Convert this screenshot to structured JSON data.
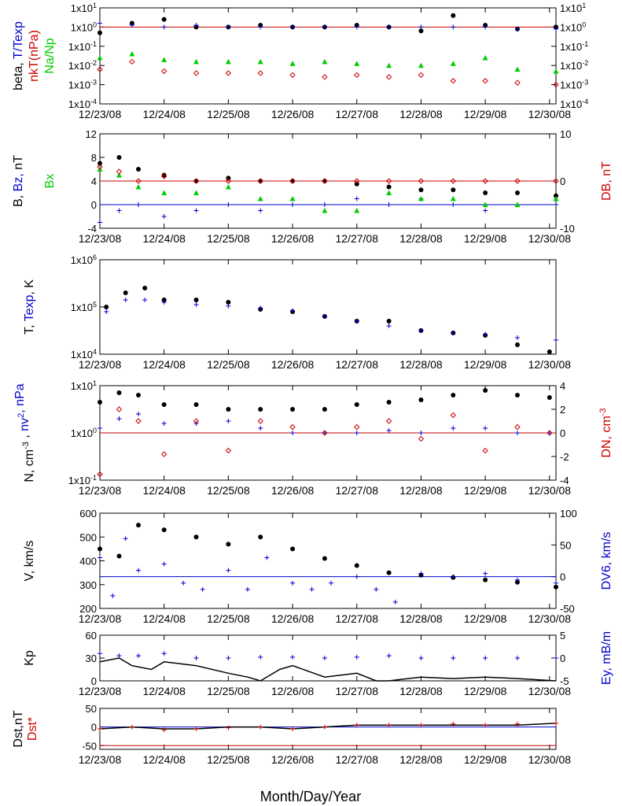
{
  "x_axis": {
    "days": [
      "12/23/08",
      "12/24/08",
      "12/25/08",
      "12/26/08",
      "12/27/08",
      "12/28/08",
      "12/29/08",
      "12/30/08"
    ],
    "title": "Month/Day/Year",
    "range": [
      0,
      7.1
    ]
  },
  "colors": {
    "black": "#000000",
    "blue": "#0000cc",
    "red": "#cc0000",
    "green": "#00cc00"
  },
  "chart_data": [
    {
      "id": "beta",
      "type": "scatter",
      "ylog": true,
      "ylim": [
        -4,
        1
      ],
      "yticks": [
        "1x10-4",
        "1x10-3",
        "1x10-2",
        "1x10-1",
        "1x100",
        "1x101"
      ],
      "y2ticks": [
        "1x10-4",
        "1x10-3",
        "1x10-2",
        "1x10-1",
        "1x100",
        "1x101"
      ],
      "ylabel_parts": [
        {
          "t": "beta, ",
          "c": "black"
        },
        {
          "t": "T/Texp",
          "c": "blue"
        }
      ],
      "ylabel2_parts": [
        {
          "t": "nkT(nPa)",
          "c": "red"
        }
      ],
      "ylabel3_parts": [
        {
          "t": "Na/Np",
          "c": "green"
        }
      ],
      "hline": {
        "value": 0,
        "color": "red"
      },
      "series": [
        {
          "marker": "circle",
          "color": "black",
          "x": [
            0,
            0.5,
            1,
            1.5,
            2,
            2.5,
            3,
            3.5,
            4,
            4.5,
            5,
            5.5,
            6,
            6.5,
            7.1
          ],
          "y": [
            -0.3,
            0.2,
            0.4,
            0,
            0,
            0.1,
            0,
            0,
            0.1,
            0,
            -0.2,
            0.6,
            0.1,
            -0.1,
            0
          ]
        },
        {
          "marker": "plus",
          "color": "blue",
          "x": [
            0,
            0.5,
            1,
            1.5,
            2,
            2.5,
            3,
            3.5,
            4,
            4.5,
            5,
            5.5,
            6,
            6.5,
            7.1
          ],
          "y": [
            0.2,
            0.1,
            0,
            0.1,
            0,
            0,
            0,
            0,
            0,
            0,
            0,
            0,
            0,
            -0.1,
            -0.1
          ]
        },
        {
          "marker": "triangle",
          "color": "green",
          "x": [
            0,
            0.5,
            1,
            1.5,
            2,
            2.5,
            3,
            3.5,
            4,
            4.5,
            5,
            5.5,
            6,
            6.5,
            7.1
          ],
          "y": [
            -1.6,
            -1.4,
            -1.7,
            -1.8,
            -1.8,
            -1.8,
            -1.9,
            -1.8,
            -1.9,
            -2,
            -2,
            -1.9,
            -1.6,
            -2.2,
            -2.3
          ]
        },
        {
          "marker": "diamond",
          "color": "red",
          "x": [
            0,
            0.5,
            1,
            1.5,
            2,
            2.5,
            3,
            3.5,
            4,
            4.5,
            5,
            5.5,
            6,
            6.5,
            7.1
          ],
          "y": [
            -2.2,
            -1.8,
            -2.3,
            -2.4,
            -2.4,
            -2.4,
            -2.5,
            -2.6,
            -2.5,
            -2.6,
            -2.5,
            -2.8,
            -2.8,
            -2.9,
            -3
          ]
        }
      ]
    },
    {
      "id": "mag",
      "type": "scatter",
      "ylog": false,
      "ylim": [
        -4,
        12
      ],
      "yticks": [
        "-4",
        "0",
        "4",
        "8",
        "12"
      ],
      "ytickvals": [
        -4,
        0,
        4,
        8,
        12
      ],
      "y2lim": [
        -10,
        10
      ],
      "y2ticks": [
        "-10",
        "0",
        "10"
      ],
      "y2tickvals": [
        -10,
        0,
        10
      ],
      "ylabel_parts": [
        {
          "t": "B, ",
          "c": "black"
        },
        {
          "t": "Bz, ",
          "c": "blue"
        },
        {
          "t": "nT",
          "c": "black"
        }
      ],
      "ylabel3_parts": [
        {
          "t": "Bx",
          "c": "green"
        }
      ],
      "ylabel2_parts": [
        {
          "t": "DB, nT",
          "c": "red"
        }
      ],
      "hline": {
        "value": 0,
        "color": "blue"
      },
      "hline2": {
        "value": 0,
        "color": "red"
      },
      "series": [
        {
          "marker": "circle",
          "color": "black",
          "x": [
            0,
            0.3,
            0.6,
            1,
            1.5,
            2,
            2.5,
            3,
            3.5,
            4,
            4.5,
            5,
            5.5,
            6,
            6.5,
            7.1
          ],
          "y": [
            7,
            8,
            6,
            5,
            4,
            4.5,
            4,
            4,
            4,
            3.5,
            3,
            2.5,
            2.5,
            2,
            2,
            1.5
          ]
        },
        {
          "marker": "plus",
          "color": "blue",
          "x": [
            0,
            0.3,
            0.6,
            1,
            1.5,
            2,
            2.5,
            3,
            3.5,
            4,
            4.5,
            5,
            5.5,
            6,
            6.5,
            7.1
          ],
          "y": [
            -3,
            -1,
            0,
            -2,
            -1,
            0,
            -1,
            0,
            0,
            1,
            0,
            1,
            0,
            -1,
            0,
            0
          ]
        },
        {
          "marker": "triangle",
          "color": "green",
          "x": [
            0,
            0.3,
            0.6,
            1,
            1.5,
            2,
            2.5,
            3,
            3.5,
            4,
            4.5,
            5,
            5.5,
            6,
            6.5,
            7.1
          ],
          "y": [
            6,
            5,
            3,
            2,
            2,
            3,
            1,
            1,
            -1,
            -1,
            2,
            1,
            1,
            0,
            0,
            1
          ]
        },
        {
          "marker": "diamond",
          "color": "red",
          "y2": true,
          "x": [
            0,
            0.3,
            0.6,
            1,
            1.5,
            2,
            2.5,
            3,
            3.5,
            4,
            4.5,
            5,
            5.5,
            6,
            6.5,
            7.1
          ],
          "y": [
            3,
            2,
            0,
            1,
            0,
            0,
            0,
            0,
            0,
            0,
            0,
            0,
            0,
            0,
            0,
            0
          ]
        }
      ]
    },
    {
      "id": "temp",
      "type": "scatter",
      "ylog": true,
      "ylim": [
        4,
        6
      ],
      "yticks": [
        "1x104",
        "1x105",
        "1x106"
      ],
      "ylabel_parts": [
        {
          "t": "T, ",
          "c": "black"
        },
        {
          "t": "Texp",
          "c": "blue"
        },
        {
          "t": ", K",
          "c": "black"
        }
      ],
      "series": [
        {
          "marker": "circle",
          "color": "black",
          "x": [
            0.1,
            0.4,
            0.7,
            1,
            1.5,
            2,
            2.5,
            3,
            3.5,
            4,
            4.5,
            5,
            5.5,
            6,
            6.5,
            7
          ],
          "y": [
            5,
            5.3,
            5.4,
            5.15,
            5.15,
            5.1,
            4.95,
            4.9,
            4.8,
            4.7,
            4.7,
            4.5,
            4.45,
            4.4,
            4.2,
            4.05
          ]
        },
        {
          "marker": "plus",
          "color": "blue",
          "x": [
            0.1,
            0.4,
            0.7,
            1,
            1.5,
            2,
            2.5,
            3,
            3.5,
            4,
            4.5,
            5,
            5.5,
            6,
            6.5,
            7.1
          ],
          "y": [
            4.9,
            5.15,
            5.15,
            5.1,
            5.05,
            5.02,
            4.98,
            4.92,
            4.8,
            4.7,
            4.6,
            4.5,
            4.45,
            4.42,
            4.35,
            4.3
          ]
        }
      ]
    },
    {
      "id": "density",
      "type": "scatter",
      "ylog": true,
      "ylim": [
        -1,
        1
      ],
      "yticks": [
        "1x10-1",
        "1x100",
        "1x101"
      ],
      "y2lim": [
        -4,
        4
      ],
      "y2ticks": [
        "-4",
        "-2",
        "0",
        "2",
        "4"
      ],
      "y2tickvals": [
        -4,
        -2,
        0,
        2,
        4
      ],
      "ylabel_parts": [
        {
          "t": "N, cm",
          "c": "black"
        },
        {
          "t": "-3",
          "c": "black",
          "sup": true
        },
        {
          "t": " , ",
          "c": "black"
        },
        {
          "t": "nv",
          "c": "blue"
        },
        {
          "t": "2",
          "c": "blue",
          "sup": true
        },
        {
          "t": ", nPa",
          "c": "blue"
        }
      ],
      "ylabel2_parts": [
        {
          "t": "DN, cm",
          "c": "red"
        },
        {
          "t": "-3",
          "c": "red",
          "sup": true
        }
      ],
      "hline": {
        "value": 0,
        "color": "red"
      },
      "series": [
        {
          "marker": "circle",
          "color": "black",
          "x": [
            0,
            0.3,
            0.6,
            1,
            1.5,
            2,
            2.5,
            3,
            3.5,
            4,
            4.5,
            5,
            5.5,
            6,
            6.5,
            7
          ],
          "y": [
            0.65,
            0.85,
            0.8,
            0.6,
            0.6,
            0.5,
            0.5,
            0.5,
            0.5,
            0.6,
            0.65,
            0.7,
            0.8,
            0.9,
            0.8,
            0.75
          ]
        },
        {
          "marker": "plus",
          "color": "blue",
          "x": [
            0,
            0.3,
            0.6,
            1,
            1.5,
            2,
            2.5,
            3,
            3.5,
            4,
            4.5,
            5,
            5.5,
            6,
            6.5,
            7
          ],
          "y": [
            0.1,
            0.3,
            0.4,
            0.2,
            0.2,
            0.25,
            0.1,
            0,
            0,
            0,
            0.05,
            0,
            0.1,
            0.1,
            0,
            0
          ]
        },
        {
          "marker": "diamond",
          "color": "red",
          "y2": true,
          "x": [
            0,
            0.3,
            0.6,
            1,
            1.5,
            2,
            2.5,
            3,
            3.5,
            4,
            4.5,
            5,
            5.5,
            6,
            6.5,
            7
          ],
          "y": [
            -3.5,
            2,
            1,
            -1.8,
            1,
            -1.5,
            1,
            0.5,
            0,
            0.5,
            1,
            -0.5,
            1.5,
            -1.5,
            0.5,
            0
          ]
        }
      ]
    },
    {
      "id": "velocity",
      "type": "scatter",
      "ylog": false,
      "ylim": [
        200,
        600
      ],
      "yticks": [
        "200",
        "300",
        "400",
        "500",
        "600"
      ],
      "ytickvals": [
        200,
        300,
        400,
        500,
        600
      ],
      "y2lim": [
        -50,
        100
      ],
      "y2ticks": [
        "-50",
        "0",
        "50",
        "100"
      ],
      "y2tickvals": [
        -50,
        0,
        50,
        100
      ],
      "ylabel_parts": [
        {
          "t": "V, km/s",
          "c": "black"
        }
      ],
      "ylabel2_parts": [
        {
          "t": "DV6, km/s",
          "c": "blue"
        }
      ],
      "hline2": {
        "value": 0,
        "color": "blue"
      },
      "series": [
        {
          "marker": "circle",
          "color": "black",
          "x": [
            0,
            0.3,
            0.6,
            1,
            1.5,
            2,
            2.5,
            3,
            3.5,
            4,
            4.5,
            5,
            5.5,
            6,
            6.5,
            7.1
          ],
          "y": [
            450,
            420,
            550,
            530,
            500,
            470,
            500,
            450,
            410,
            380,
            350,
            340,
            330,
            320,
            310,
            290
          ]
        },
        {
          "marker": "plus",
          "color": "blue",
          "y2": true,
          "x": [
            0,
            0.2,
            0.4,
            0.6,
            1,
            1.3,
            1.6,
            2,
            2.3,
            2.6,
            3,
            3.3,
            3.6,
            4,
            4.3,
            4.6,
            5,
            5.5,
            6,
            6.5,
            7.1
          ],
          "y": [
            30,
            -30,
            60,
            10,
            20,
            -10,
            -20,
            10,
            -20,
            30,
            -10,
            -20,
            -10,
            0,
            -20,
            -40,
            5,
            0,
            5,
            -5,
            -10
          ]
        }
      ]
    },
    {
      "id": "kp",
      "type": "line",
      "ylog": false,
      "ylim": [
        0,
        60
      ],
      "yticks": [
        "0",
        "30",
        "60"
      ],
      "ytickvals": [
        0,
        30,
        60
      ],
      "y2lim": [
        -5,
        5
      ],
      "y2ticks": [
        "-5",
        "0",
        "5"
      ],
      "y2tickvals": [
        -5,
        0,
        5
      ],
      "ylabel_parts": [
        {
          "t": "Kp",
          "c": "black"
        }
      ],
      "ylabel2_parts": [
        {
          "t": "Ey, mB/m",
          "c": "blue"
        }
      ],
      "series": [
        {
          "marker": "line",
          "color": "black",
          "x": [
            0,
            0.3,
            0.5,
            0.8,
            1,
            1.5,
            2,
            2.3,
            2.5,
            2.8,
            3,
            3.5,
            4,
            4.3,
            4.5,
            5,
            5.5,
            6,
            6.5,
            7.1
          ],
          "y": [
            25,
            30,
            20,
            15,
            25,
            20,
            10,
            5,
            0,
            15,
            20,
            5,
            10,
            0,
            0,
            5,
            3,
            5,
            3,
            0
          ]
        },
        {
          "marker": "plus",
          "color": "blue",
          "y2": true,
          "x": [
            0,
            0.3,
            0.6,
            1,
            1.5,
            2,
            2.5,
            3,
            3.5,
            4,
            4.5,
            5,
            5.5,
            6,
            6.5,
            7.1
          ],
          "y": [
            1,
            0.5,
            0.5,
            1,
            0,
            0,
            0.2,
            0.2,
            0,
            0.2,
            0.5,
            0,
            0,
            0,
            0,
            0
          ]
        }
      ]
    },
    {
      "id": "dst",
      "type": "line",
      "ylog": false,
      "ylim": [
        -60,
        50
      ],
      "yticks": [
        "-50",
        "0",
        "50"
      ],
      "ytickvals": [
        -50,
        0,
        50
      ],
      "ylabel_parts": [
        {
          "t": "Dst,nT",
          "c": "black"
        }
      ],
      "ylabel3_parts": [
        {
          "t": "Dst*",
          "c": "red"
        }
      ],
      "hline": {
        "value": 0,
        "color": "blue"
      },
      "hline_extra": {
        "value": -50,
        "color": "red"
      },
      "series": [
        {
          "marker": "line",
          "color": "black",
          "x": [
            0,
            0.5,
            1,
            1.5,
            2,
            2.5,
            3,
            3.5,
            4,
            4.5,
            5,
            5.5,
            6,
            6.5,
            7.1
          ],
          "y": [
            -5,
            0,
            -5,
            -5,
            0,
            0,
            -5,
            0,
            5,
            5,
            5,
            5,
            5,
            5,
            10
          ]
        },
        {
          "marker": "plus",
          "color": "red",
          "x": [
            0,
            0.5,
            1,
            1.5,
            2,
            2.5,
            3,
            3.5,
            4,
            4.5,
            5,
            5.5,
            6,
            6.5,
            7.1
          ],
          "y": [
            -5,
            0,
            -8,
            -5,
            -2,
            0,
            -5,
            0,
            5,
            5,
            5,
            8,
            5,
            8,
            10
          ]
        }
      ]
    }
  ]
}
